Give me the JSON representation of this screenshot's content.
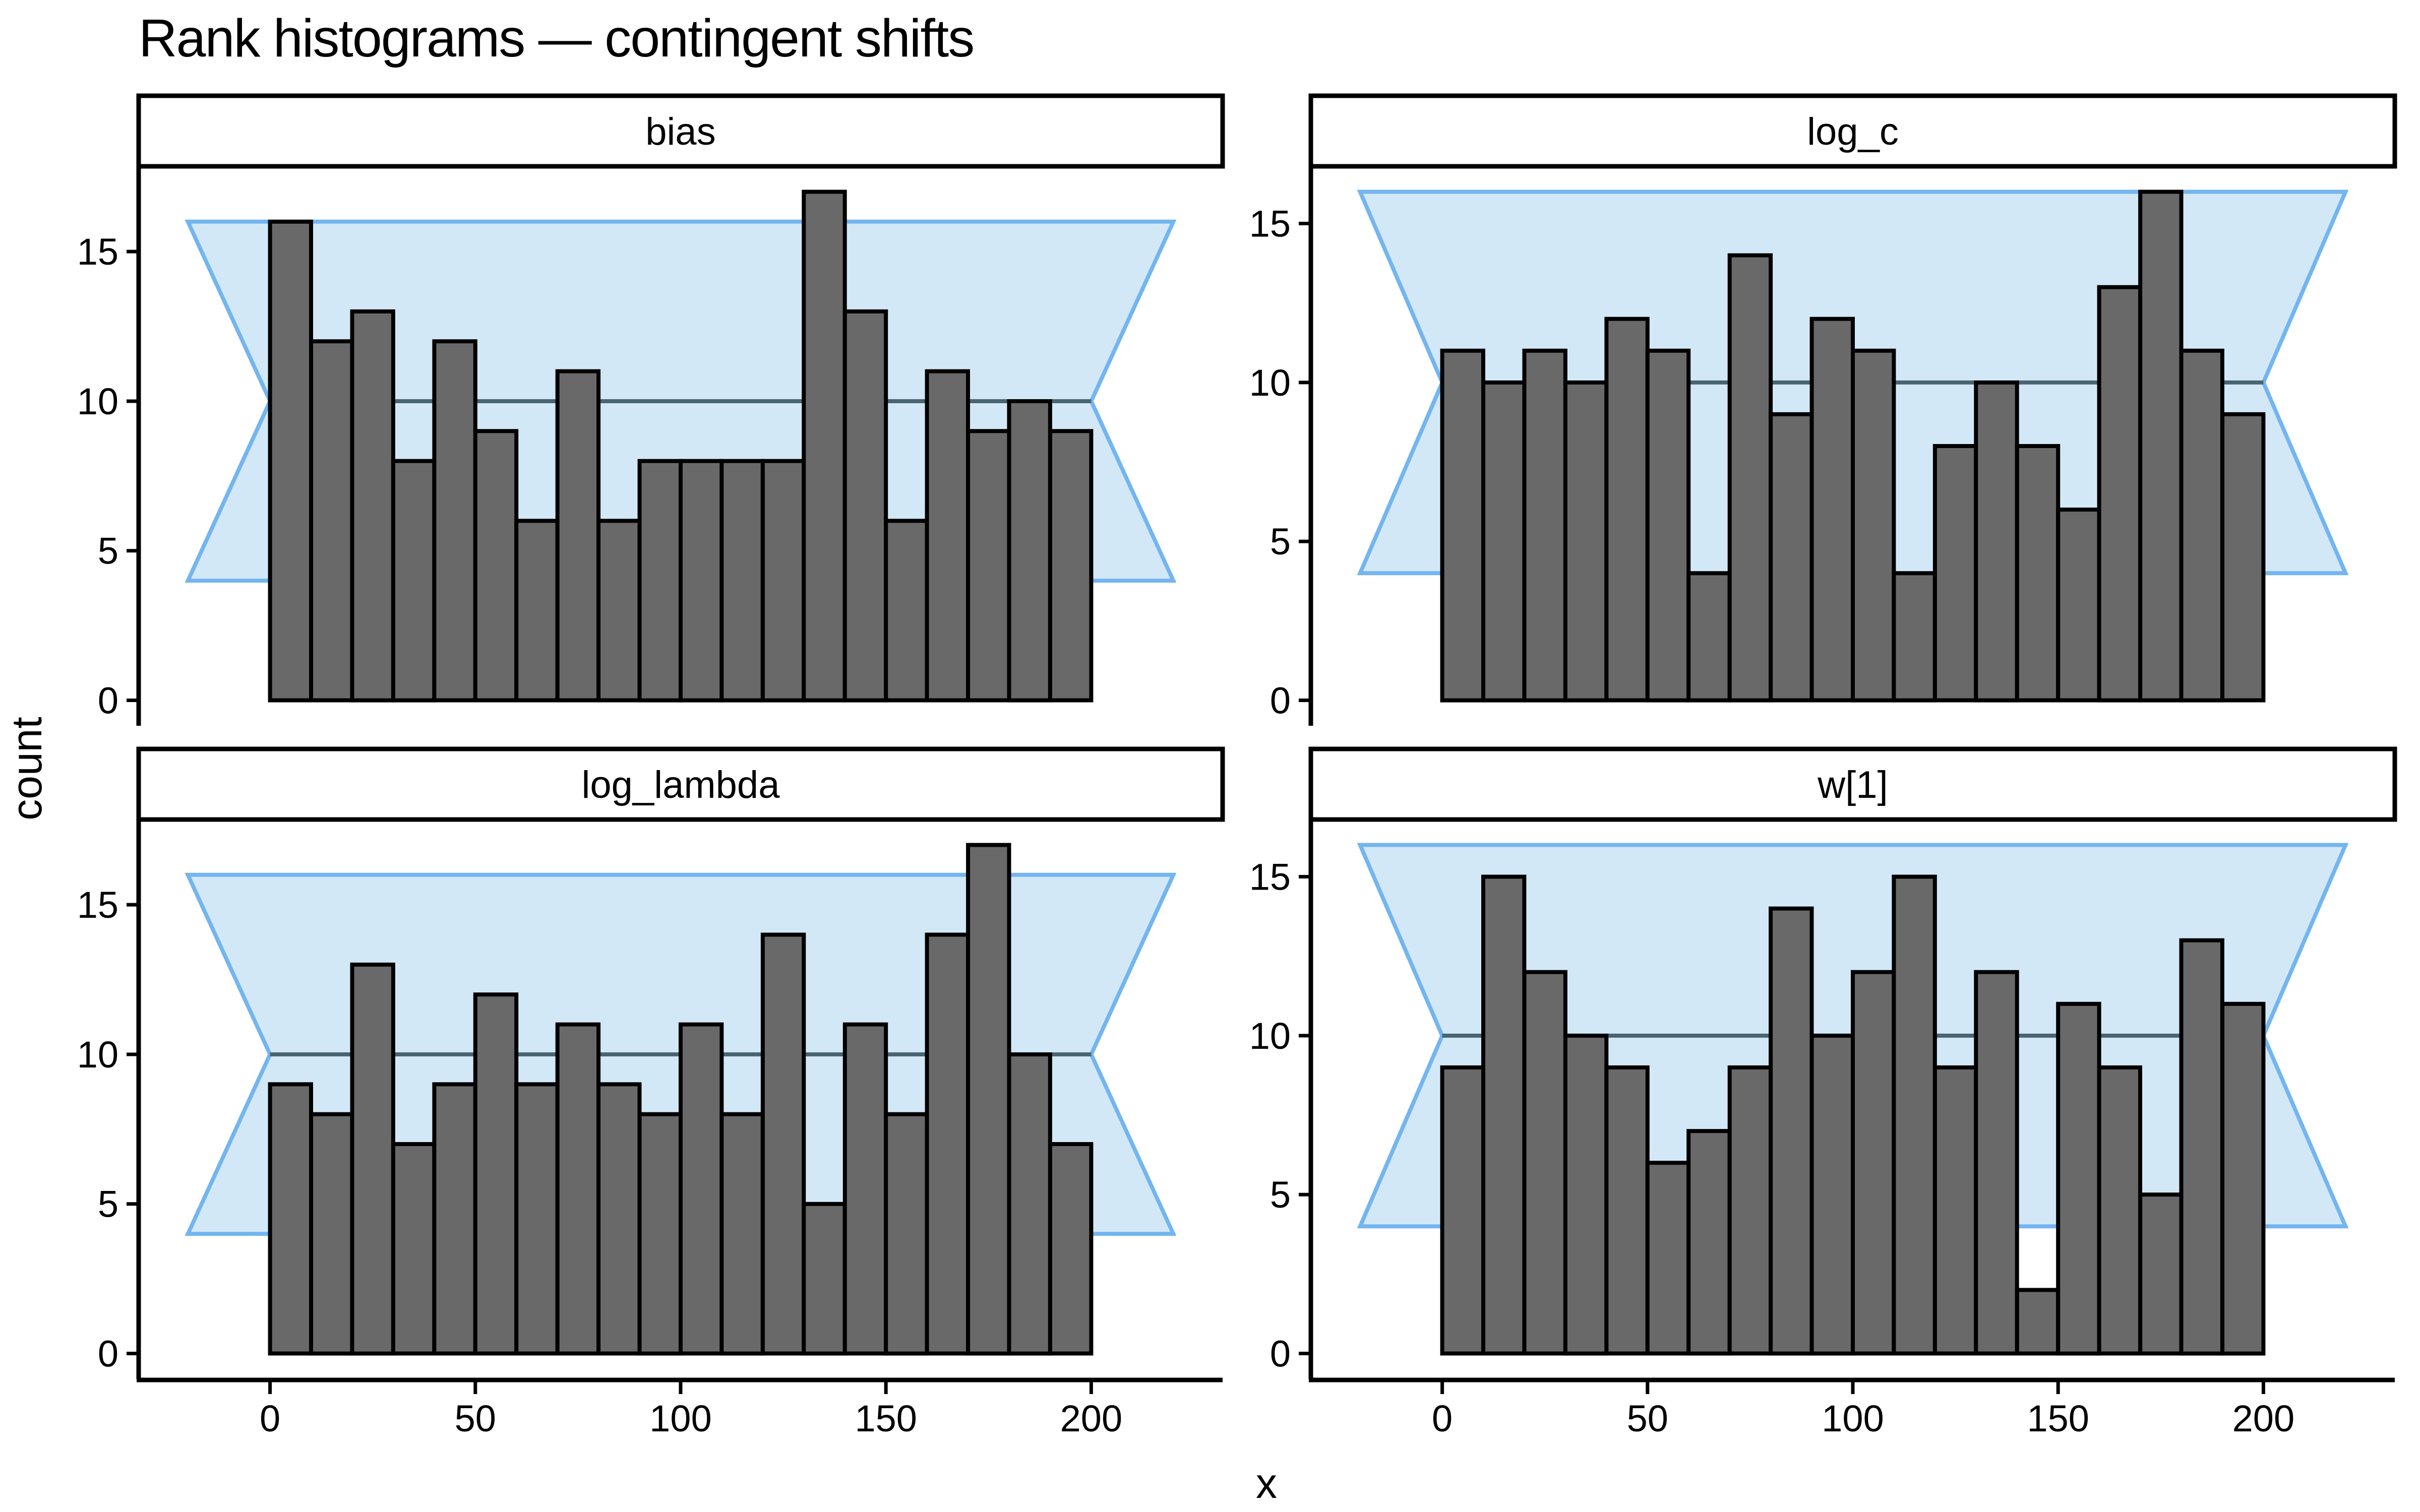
{
  "title": "Rank histograms — contingent shifts",
  "axes": {
    "x_label": "x",
    "y_label": "count",
    "x_ticks": [
      0,
      50,
      100,
      150,
      200
    ],
    "y_ticks": [
      0,
      5,
      10,
      15
    ]
  },
  "colors": {
    "background": "#ffffff",
    "bar_fill": "#696969",
    "bar_stroke": "#000000",
    "band_fill": "#d3e8f6",
    "band_stroke": "#73b5f0",
    "mid_line": "#4a6572",
    "axis": "#000000",
    "strip_bg": "#ffffff",
    "strip_border": "#000000",
    "text": "#000000"
  },
  "chart_data": {
    "type": "bar",
    "subtype": "faceted-rank-histograms",
    "title": "Rank histograms — contingent shifts",
    "xlabel": "x",
    "ylabel": "count",
    "n_bins": 20,
    "bin_width": 10,
    "x_range": [
      0,
      200
    ],
    "xlim": [
      -32,
      232
    ],
    "total_count_per_panel": 200,
    "grid": false,
    "legend": false,
    "band": {
      "description": "expected-count confidence hexagon",
      "x_outer_left": -20,
      "x_outer_right": 220,
      "x_pinch_left": 0,
      "x_pinch_right": 200,
      "y_low": 4,
      "y_high": 16,
      "y_mid": 10
    },
    "categories_note": "bins of width 10 covering rank 0..200",
    "panels": [
      {
        "label": "bias",
        "ymax": 17,
        "counts": [
          16,
          12,
          13,
          8,
          12,
          9,
          6,
          11,
          6,
          8,
          8,
          8,
          8,
          17,
          13,
          6,
          11,
          9,
          10,
          9
        ]
      },
      {
        "label": "log_c",
        "ymax": 16,
        "counts": [
          11,
          10,
          11,
          10,
          12,
          11,
          4,
          14,
          9,
          12,
          11,
          4,
          8,
          10,
          8,
          6,
          13,
          16,
          11,
          9
        ]
      },
      {
        "label": "log_lambda",
        "ymax": 17,
        "counts": [
          9,
          8,
          13,
          7,
          9,
          12,
          9,
          11,
          9,
          8,
          11,
          8,
          14,
          5,
          11,
          8,
          14,
          17,
          10,
          7
        ]
      },
      {
        "label": "w[1]",
        "ymax": 16,
        "counts": [
          9,
          15,
          12,
          10,
          9,
          6,
          7,
          9,
          14,
          10,
          12,
          15,
          9,
          12,
          2,
          11,
          9,
          5,
          13,
          11
        ]
      }
    ]
  }
}
